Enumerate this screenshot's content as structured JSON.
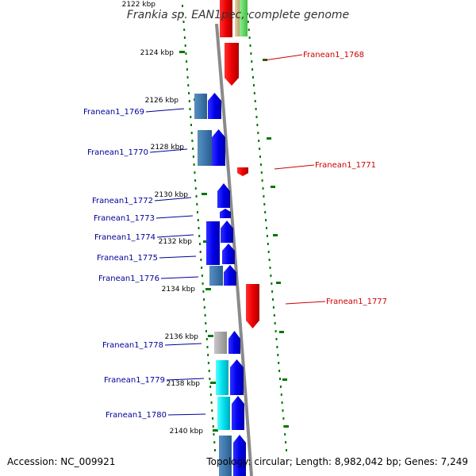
{
  "title": "Frankia sp. EAN1pec, complete genome",
  "footer": {
    "accession": "Accession: NC_009921",
    "topology": "Topology: circular; Length: 8,982,042 bp; Genes: 7,249"
  },
  "colors": {
    "forward_strand": "#0000ee",
    "reverse_strand": "#ee0000",
    "tick": "#007700",
    "backbone": "#888888",
    "label_forward": "#000099",
    "label_reverse": "#cc0000"
  },
  "scale": [
    {
      "label": "2122 kbp",
      "pos_kbp": 2122
    },
    {
      "label": "2124 kbp",
      "pos_kbp": 2124
    },
    {
      "label": "2126 kbp",
      "pos_kbp": 2126
    },
    {
      "label": "2128 kbp",
      "pos_kbp": 2128
    },
    {
      "label": "2130 kbp",
      "pos_kbp": 2130
    },
    {
      "label": "2132 kbp",
      "pos_kbp": 2132
    },
    {
      "label": "2134 kbp",
      "pos_kbp": 2134
    },
    {
      "label": "2136 kbp",
      "pos_kbp": 2136
    },
    {
      "label": "2138 kbp",
      "pos_kbp": 2138
    },
    {
      "label": "2140 kbp",
      "pos_kbp": 2140
    }
  ],
  "genes": [
    {
      "name": "Franean1_1768",
      "strand": "reverse"
    },
    {
      "name": "Franean1_1769",
      "strand": "forward"
    },
    {
      "name": "Franean1_1770",
      "strand": "forward"
    },
    {
      "name": "Franean1_1771",
      "strand": "reverse"
    },
    {
      "name": "Franean1_1772",
      "strand": "forward"
    },
    {
      "name": "Franean1_1773",
      "strand": "forward"
    },
    {
      "name": "Franean1_1774",
      "strand": "forward"
    },
    {
      "name": "Franean1_1775",
      "strand": "forward"
    },
    {
      "name": "Franean1_1776",
      "strand": "forward"
    },
    {
      "name": "Franean1_1777",
      "strand": "reverse"
    },
    {
      "name": "Franean1_1778",
      "strand": "forward"
    },
    {
      "name": "Franean1_1779",
      "strand": "forward"
    },
    {
      "name": "Franean1_1780",
      "strand": "forward"
    }
  ]
}
